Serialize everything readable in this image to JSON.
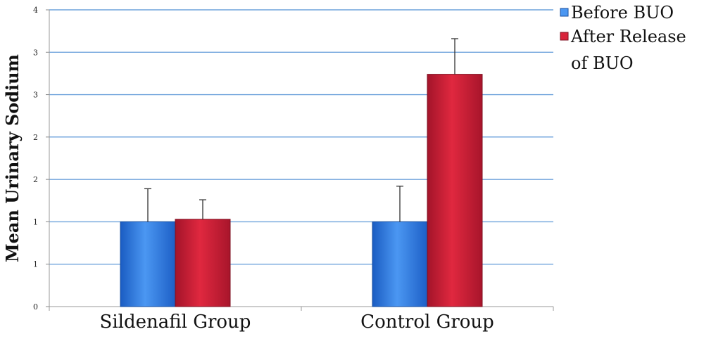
{
  "chart_data": {
    "type": "bar",
    "title": "",
    "xlabel": "",
    "ylabel": "Mean Urinary Sodium",
    "categories": [
      "Sildenafil Group",
      "Control Group"
    ],
    "y_tick_labels": [
      "0",
      "1",
      "1",
      "2",
      "2",
      "3",
      "3",
      "4"
    ],
    "ylim": [
      0,
      3.5
    ],
    "grid": true,
    "legend_position": "top-right",
    "series": [
      {
        "name": "Before BUO",
        "color": "#2f7de1",
        "values": [
          1.0,
          1.0
        ],
        "error": [
          0.39,
          0.42
        ]
      },
      {
        "name": "After Release of BUO",
        "name_lines": [
          "After Release",
          "of BUO"
        ],
        "color": "#c81e35",
        "values": [
          1.03,
          2.74
        ],
        "error": [
          0.23,
          0.42
        ]
      }
    ]
  }
}
